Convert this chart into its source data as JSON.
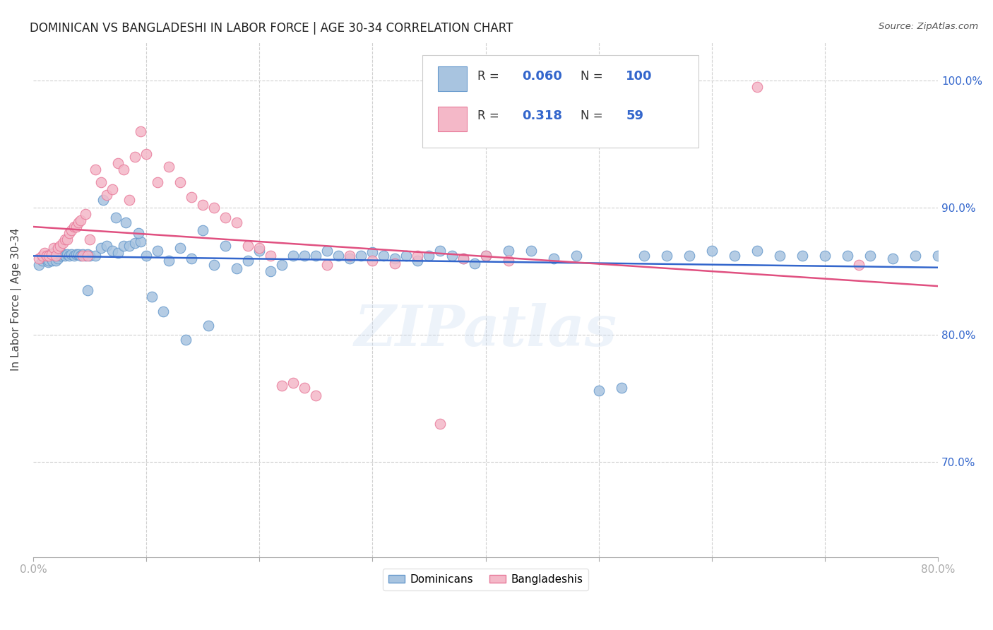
{
  "title": "DOMINICAN VS BANGLADESHI IN LABOR FORCE | AGE 30-34 CORRELATION CHART",
  "source": "Source: ZipAtlas.com",
  "ylabel": "In Labor Force | Age 30-34",
  "xlim": [
    0.0,
    0.8
  ],
  "ylim": [
    0.625,
    1.03
  ],
  "xtick_vals": [
    0.0,
    0.1,
    0.2,
    0.3,
    0.4,
    0.5,
    0.6,
    0.7,
    0.8
  ],
  "xtick_labels_sparse": {
    "0": "0.0%",
    "8": "80.0%"
  },
  "ytick_vals": [
    0.7,
    0.8,
    0.9,
    1.0
  ],
  "ytick_labels": [
    "70.0%",
    "80.0%",
    "90.0%",
    "100.0%"
  ],
  "dominican_color": "#a8c4e0",
  "bangladeshi_color": "#f4b8c8",
  "dominican_edge": "#6699cc",
  "bangladeshi_edge": "#e87a9a",
  "trendline_dominican_color": "#3366cc",
  "trendline_bangladeshi_color": "#e05080",
  "R_dominican": 0.06,
  "N_dominican": 100,
  "R_bangladeshi": 0.318,
  "N_bangladeshi": 59,
  "dom_x": [
    0.005,
    0.008,
    0.01,
    0.012,
    0.013,
    0.014,
    0.015,
    0.016,
    0.017,
    0.018,
    0.019,
    0.02,
    0.021,
    0.022,
    0.023,
    0.024,
    0.025,
    0.026,
    0.027,
    0.028,
    0.03,
    0.032,
    0.034,
    0.036,
    0.038,
    0.04,
    0.042,
    0.044,
    0.046,
    0.048,
    0.05,
    0.055,
    0.06,
    0.065,
    0.07,
    0.075,
    0.08,
    0.085,
    0.09,
    0.095,
    0.1,
    0.11,
    0.12,
    0.13,
    0.14,
    0.15,
    0.16,
    0.17,
    0.18,
    0.19,
    0.2,
    0.21,
    0.22,
    0.23,
    0.24,
    0.25,
    0.26,
    0.27,
    0.28,
    0.29,
    0.3,
    0.31,
    0.32,
    0.33,
    0.34,
    0.35,
    0.36,
    0.37,
    0.38,
    0.39,
    0.4,
    0.42,
    0.44,
    0.46,
    0.48,
    0.5,
    0.52,
    0.54,
    0.56,
    0.58,
    0.6,
    0.62,
    0.64,
    0.66,
    0.68,
    0.7,
    0.72,
    0.74,
    0.76,
    0.78,
    0.8,
    0.048,
    0.062,
    0.073,
    0.082,
    0.093,
    0.105,
    0.115,
    0.135,
    0.155
  ],
  "dom_y": [
    0.855,
    0.858,
    0.86,
    0.862,
    0.857,
    0.858,
    0.863,
    0.86,
    0.858,
    0.862,
    0.865,
    0.858,
    0.862,
    0.86,
    0.865,
    0.862,
    0.862,
    0.863,
    0.863,
    0.862,
    0.863,
    0.862,
    0.863,
    0.862,
    0.863,
    0.863,
    0.862,
    0.863,
    0.862,
    0.863,
    0.862,
    0.862,
    0.868,
    0.87,
    0.866,
    0.864,
    0.87,
    0.87,
    0.872,
    0.873,
    0.862,
    0.866,
    0.858,
    0.868,
    0.86,
    0.882,
    0.855,
    0.87,
    0.852,
    0.858,
    0.866,
    0.85,
    0.855,
    0.862,
    0.862,
    0.862,
    0.866,
    0.862,
    0.86,
    0.862,
    0.865,
    0.862,
    0.86,
    0.862,
    0.858,
    0.862,
    0.866,
    0.862,
    0.86,
    0.856,
    0.862,
    0.866,
    0.866,
    0.86,
    0.862,
    0.756,
    0.758,
    0.862,
    0.862,
    0.862,
    0.866,
    0.862,
    0.866,
    0.862,
    0.862,
    0.862,
    0.862,
    0.862,
    0.86,
    0.862,
    0.862,
    0.835,
    0.906,
    0.892,
    0.888,
    0.88,
    0.83,
    0.818,
    0.796,
    0.807
  ],
  "ban_x": [
    0.005,
    0.008,
    0.01,
    0.012,
    0.014,
    0.016,
    0.018,
    0.02,
    0.022,
    0.024,
    0.026,
    0.028,
    0.03,
    0.032,
    0.034,
    0.036,
    0.038,
    0.04,
    0.042,
    0.044,
    0.046,
    0.048,
    0.05,
    0.055,
    0.06,
    0.065,
    0.07,
    0.075,
    0.08,
    0.085,
    0.09,
    0.095,
    0.1,
    0.11,
    0.12,
    0.13,
    0.14,
    0.15,
    0.16,
    0.17,
    0.18,
    0.19,
    0.2,
    0.21,
    0.22,
    0.23,
    0.24,
    0.25,
    0.26,
    0.28,
    0.3,
    0.32,
    0.34,
    0.36,
    0.38,
    0.4,
    0.42,
    0.64,
    0.73
  ],
  "ban_y": [
    0.86,
    0.862,
    0.864,
    0.862,
    0.862,
    0.863,
    0.868,
    0.862,
    0.868,
    0.87,
    0.872,
    0.875,
    0.875,
    0.88,
    0.882,
    0.885,
    0.885,
    0.888,
    0.89,
    0.862,
    0.895,
    0.862,
    0.875,
    0.93,
    0.92,
    0.91,
    0.914,
    0.935,
    0.93,
    0.906,
    0.94,
    0.96,
    0.942,
    0.92,
    0.932,
    0.92,
    0.908,
    0.902,
    0.9,
    0.892,
    0.888,
    0.87,
    0.868,
    0.862,
    0.76,
    0.762,
    0.758,
    0.752,
    0.855,
    0.862,
    0.858,
    0.856,
    0.862,
    0.73,
    0.86,
    0.862,
    0.858,
    0.995,
    0.855
  ],
  "watermark": "ZIPatlas",
  "background_color": "#ffffff",
  "grid_color": "#d0d0d0"
}
